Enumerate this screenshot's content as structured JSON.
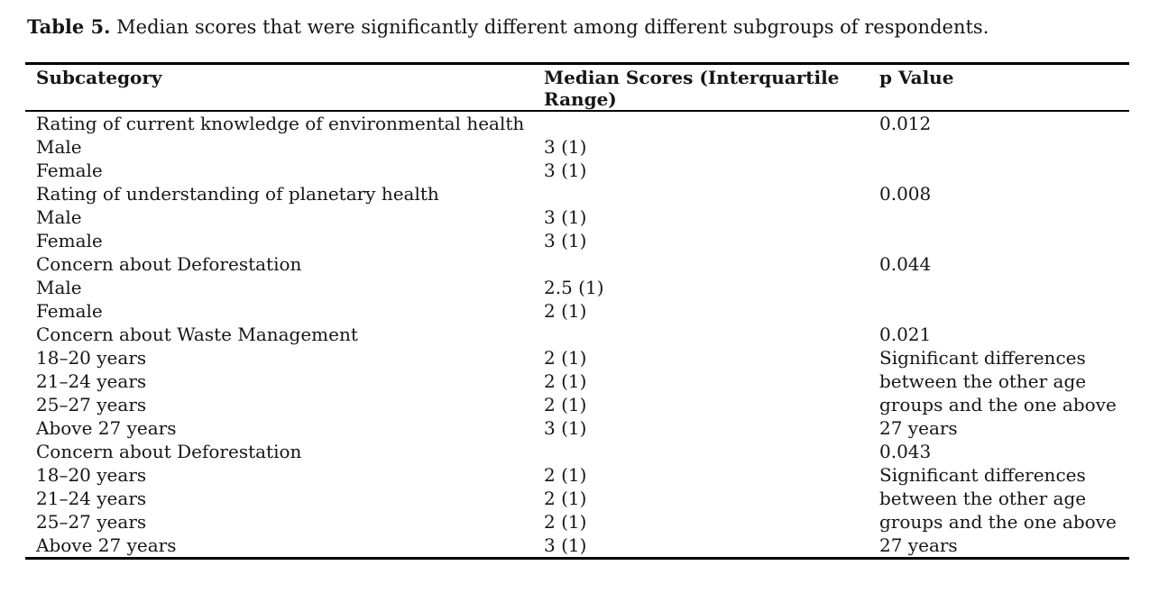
{
  "page": {
    "caption_label": "Table 5.",
    "caption_text": "Median scores that were significantly different among different subgroups of respondents."
  },
  "table": {
    "headers": {
      "subcategory": "Subcategory",
      "median": "Median Scores (Interquartile\nRange)",
      "p": "p Value"
    },
    "rows": [
      {
        "subcategory": "Rating of current knowledge of environmental health",
        "median": "",
        "p": "0.012"
      },
      {
        "subcategory": "Male",
        "median": "3 (1)",
        "p": ""
      },
      {
        "subcategory": "Female",
        "median": "3 (1)",
        "p": ""
      },
      {
        "subcategory": "Rating of understanding of planetary health",
        "median": "",
        "p": "0.008"
      },
      {
        "subcategory": "Male",
        "median": "3 (1)",
        "p": ""
      },
      {
        "subcategory": "Female",
        "median": "3 (1)",
        "p": ""
      },
      {
        "subcategory": "Concern about Deforestation",
        "median": "",
        "p": "0.044"
      },
      {
        "subcategory": "Male",
        "median": "2.5 (1)",
        "p": ""
      },
      {
        "subcategory": "Female",
        "median": "2 (1)",
        "p": ""
      },
      {
        "subcategory": "Concern about Waste Management",
        "median": "",
        "p": "0.021"
      },
      {
        "subcategory": "18–20 years",
        "median": "2 (1)",
        "p": "Significant differences"
      },
      {
        "subcategory": "21–24 years",
        "median": "2 (1)",
        "p": "between the other age"
      },
      {
        "subcategory": "25–27 years",
        "median": "2 (1)",
        "p": "groups and the one above"
      },
      {
        "subcategory": "Above 27 years",
        "median": "3 (1)",
        "p": "27 years"
      },
      {
        "subcategory": "Concern about Deforestation",
        "median": "",
        "p": "0.043"
      },
      {
        "subcategory": "18–20 years",
        "median": "2 (1)",
        "p": "Significant differences"
      },
      {
        "subcategory": "21–24 years",
        "median": "2 (1)",
        "p": "between the other age"
      },
      {
        "subcategory": "25–27 years",
        "median": "2 (1)",
        "p": "groups and the one above"
      },
      {
        "subcategory": "Above 27 years",
        "median": "3 (1)",
        "p": "27 years"
      }
    ]
  }
}
